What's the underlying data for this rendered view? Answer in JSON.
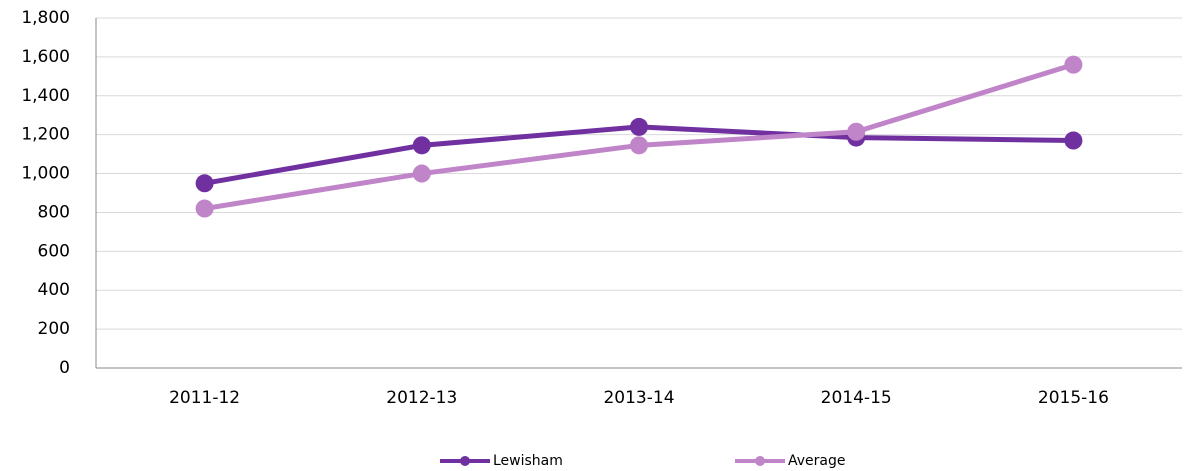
{
  "chart_data": {
    "type": "line",
    "categories": [
      "2011-12",
      "2012-13",
      "2013-14",
      "2014-15",
      "2015-16"
    ],
    "series": [
      {
        "name": "Lewisham",
        "color": "#7030a0",
        "values": [
          950,
          1145,
          1240,
          1185,
          1170
        ]
      },
      {
        "name": "Average",
        "color": "#c085c8",
        "values": [
          820,
          1000,
          1145,
          1215,
          1560
        ]
      }
    ],
    "ylim": [
      0,
      1800
    ],
    "yticks": [
      0,
      200,
      400,
      600,
      800,
      {
        "value": 1000,
        "label": "1,000"
      },
      {
        "value": 1200,
        "label": "1,200"
      },
      {
        "value": 1400,
        "label": "1,400"
      },
      {
        "value": 1600,
        "label": "1,600"
      },
      {
        "value": 1800,
        "label": "1,800"
      }
    ],
    "grid": true,
    "legend": "bottom"
  }
}
